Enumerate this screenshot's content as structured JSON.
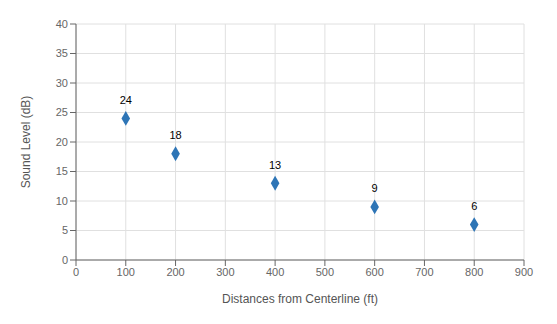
{
  "chart_data": {
    "type": "scatter",
    "xlabel": "Distances from Centerline (ft)",
    "ylabel": "Sound Level (dB)",
    "x": [
      100,
      200,
      400,
      600,
      800
    ],
    "values": [
      24,
      18,
      13,
      9,
      6
    ],
    "color": "#2E75B6",
    "marker": "diamond",
    "xlim": [
      0,
      900
    ],
    "ylim": [
      0,
      40
    ],
    "xticks": [
      0,
      100,
      200,
      300,
      400,
      500,
      600,
      700,
      800,
      900
    ],
    "yticks": [
      0,
      5,
      10,
      15,
      20,
      25,
      30,
      35,
      40
    ],
    "grid": true,
    "data_labels": true
  }
}
